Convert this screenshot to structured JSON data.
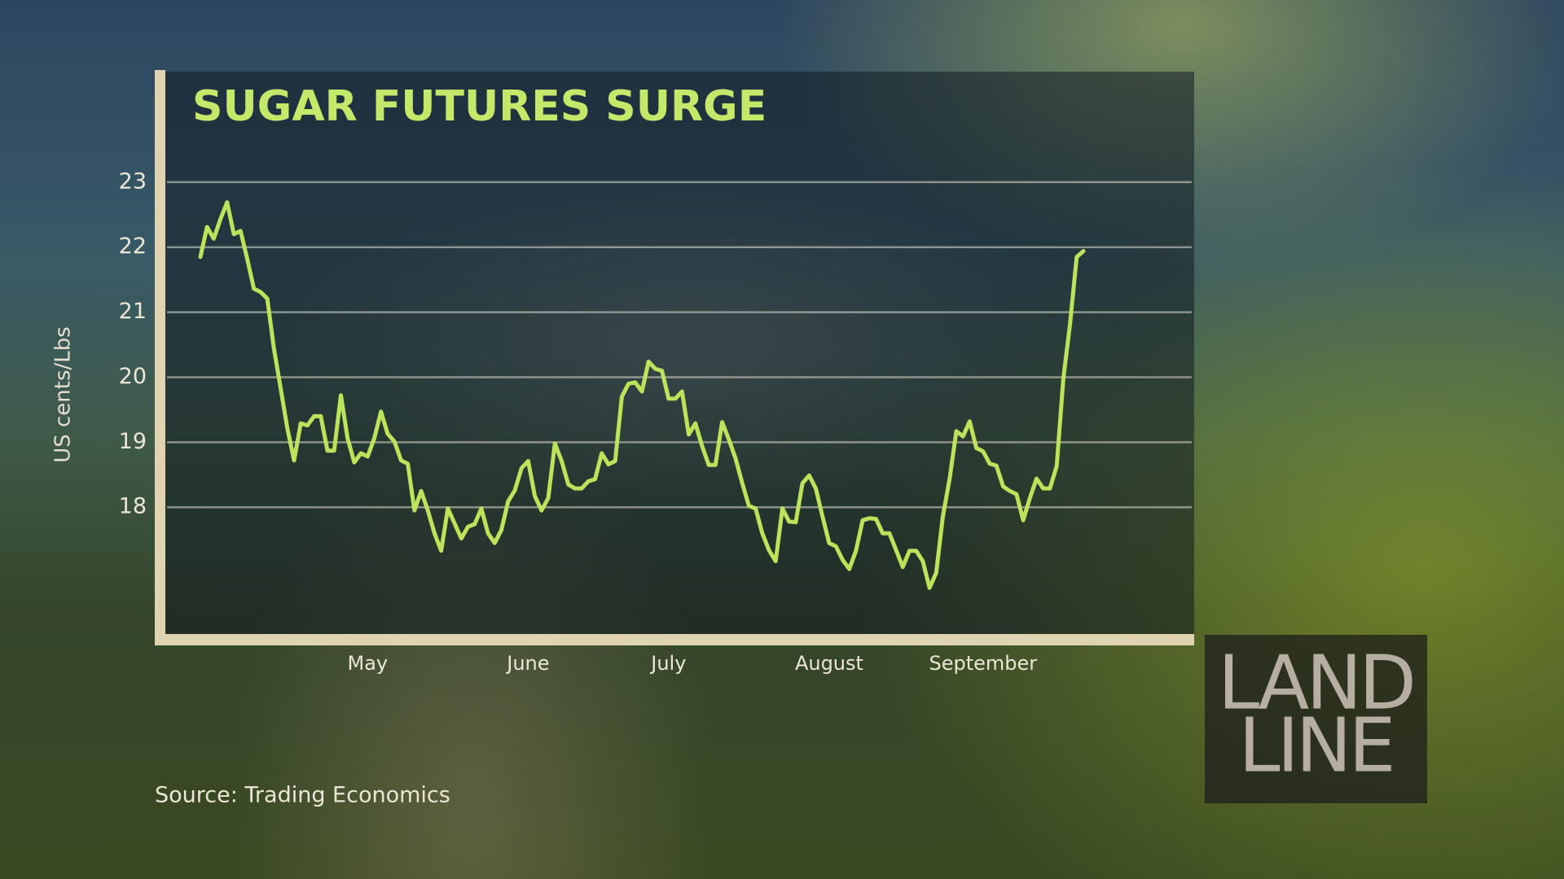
{
  "chart_data": {
    "type": "line",
    "title": "SUGAR FUTURES SURGE",
    "y_label": "US cents/Lbs",
    "source": "Source: Trading Economics",
    "categories": [
      null,
      null,
      null,
      null,
      null,
      null,
      null,
      null,
      null,
      null,
      null,
      null,
      null,
      null,
      null,
      null,
      null,
      null,
      null,
      null,
      null,
      null,
      null,
      null,
      null,
      "May",
      null,
      null,
      null,
      null,
      null,
      null,
      null,
      null,
      null,
      null,
      null,
      null,
      null,
      null,
      null,
      null,
      null,
      null,
      null,
      null,
      null,
      null,
      null,
      "June",
      null,
      null,
      null,
      null,
      null,
      null,
      null,
      null,
      null,
      null,
      null,
      null,
      null,
      null,
      null,
      null,
      null,
      null,
      null,
      null,
      "July",
      null,
      null,
      null,
      null,
      null,
      null,
      null,
      null,
      null,
      null,
      null,
      null,
      null,
      null,
      null,
      null,
      null,
      null,
      null,
      null,
      null,
      null,
      null,
      "August",
      null,
      null,
      null,
      null,
      null,
      null,
      null,
      null,
      null,
      null,
      null,
      null,
      null,
      null,
      null,
      null,
      null,
      null,
      null,
      null,
      null,
      null,
      "September",
      null,
      null,
      null,
      null,
      null,
      null,
      null,
      null,
      null,
      null,
      null,
      null,
      null,
      null,
      null
    ],
    "series": [
      {
        "color": "#bde35c",
        "values": [
          21.85,
          22.31,
          22.13,
          22.43,
          22.69,
          22.2,
          22.25,
          21.82,
          21.36,
          21.31,
          21.21,
          20.44,
          19.83,
          19.21,
          18.72,
          19.29,
          19.26,
          19.4,
          19.4,
          18.87,
          18.87,
          19.72,
          19.06,
          18.69,
          18.83,
          18.78,
          19.06,
          19.47,
          19.13,
          19.01,
          18.72,
          18.67,
          17.95,
          18.25,
          17.95,
          17.6,
          17.33,
          17.98,
          17.75,
          17.52,
          17.7,
          17.74,
          17.98,
          17.6,
          17.45,
          17.65,
          18.09,
          18.26,
          18.6,
          18.71,
          18.17,
          17.95,
          18.14,
          18.98,
          18.71,
          18.35,
          18.29,
          18.29,
          18.4,
          18.43,
          18.83,
          18.66,
          18.71,
          19.7,
          19.9,
          19.92,
          19.78,
          20.24,
          20.13,
          20.1,
          19.67,
          19.67,
          19.78,
          19.12,
          19.29,
          18.94,
          18.65,
          18.65,
          19.31,
          19.04,
          18.75,
          18.37,
          18.02,
          17.98,
          17.6,
          17.34,
          17.17,
          17.98,
          17.78,
          17.77,
          18.37,
          18.49,
          18.29,
          17.86,
          17.45,
          17.4,
          17.19,
          17.05,
          17.33,
          17.8,
          17.83,
          17.82,
          17.6,
          17.6,
          17.34,
          17.08,
          17.33,
          17.33,
          17.17,
          16.76,
          16.99,
          17.86,
          18.44,
          19.17,
          19.09,
          19.32,
          18.91,
          18.86,
          18.67,
          18.64,
          18.32,
          18.25,
          18.2,
          17.8,
          18.14,
          18.44,
          18.29,
          18.29,
          18.63,
          19.98,
          20.82,
          21.85,
          21.94
        ]
      }
    ],
    "ylim": [
      16.05,
      24.7
    ],
    "yticks": [
      18,
      19,
      20,
      21,
      22,
      23
    ],
    "grid": true
  },
  "branding": {
    "logo": [
      "LAND",
      "LINE"
    ]
  }
}
